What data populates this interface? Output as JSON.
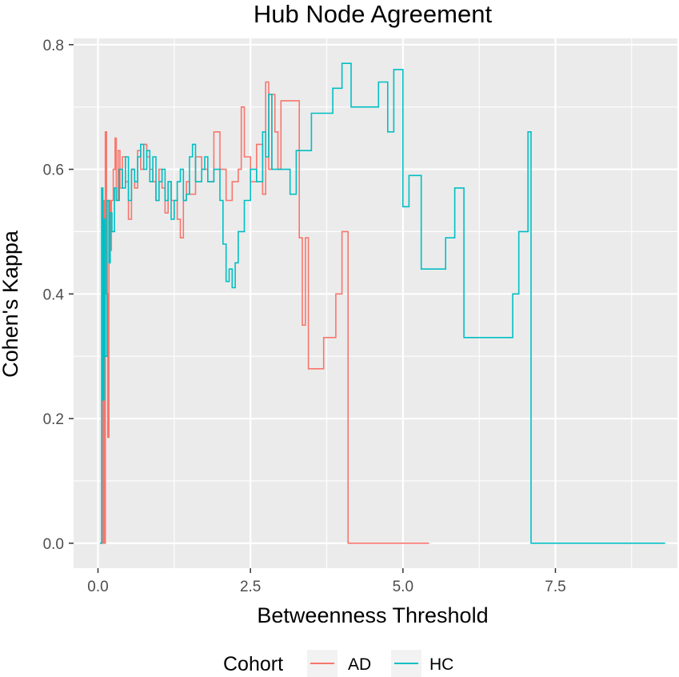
{
  "chart_data": {
    "type": "line",
    "line_style": "step",
    "title": "Hub Node Agreement",
    "xlabel": "Betweenness Threshold",
    "ylabel": "Cohen's Kappa",
    "xlim": [
      -0.4,
      9.5
    ],
    "ylim": [
      -0.04,
      0.81
    ],
    "x_ticks": [
      0,
      2.5,
      5,
      7.5
    ],
    "x_tick_labels": [
      "0.0",
      "2.5",
      "5.0",
      "7.5"
    ],
    "y_ticks": [
      0,
      0.2,
      0.4,
      0.6,
      0.8
    ],
    "y_tick_labels": [
      "0.0",
      "0.2",
      "0.4",
      "0.6",
      "0.8"
    ],
    "grid": true,
    "legend": {
      "title": "Cohort",
      "position": "bottom"
    },
    "series": [
      {
        "name": "AD",
        "color": "#F8766D",
        "x": [
          0.05,
          0.08,
          0.1,
          0.12,
          0.14,
          0.16,
          0.18,
          0.2,
          0.22,
          0.25,
          0.28,
          0.3,
          0.33,
          0.36,
          0.4,
          0.45,
          0.5,
          0.55,
          0.6,
          0.65,
          0.7,
          0.75,
          0.8,
          0.85,
          0.9,
          0.95,
          1.0,
          1.05,
          1.1,
          1.15,
          1.2,
          1.3,
          1.35,
          1.4,
          1.45,
          1.5,
          1.6,
          1.7,
          1.8,
          1.9,
          2.0,
          2.1,
          2.2,
          2.3,
          2.35,
          2.4,
          2.5,
          2.6,
          2.7,
          2.75,
          2.8,
          2.85,
          2.9,
          2.95,
          3.0,
          3.3,
          3.35,
          3.4,
          3.45,
          3.55,
          3.7,
          3.9,
          4.0,
          4.1,
          4.3,
          5.43
        ],
        "values": [
          0.0,
          0.55,
          0.0,
          0.66,
          0.4,
          0.17,
          0.55,
          0.47,
          0.55,
          0.6,
          0.65,
          0.55,
          0.63,
          0.57,
          0.62,
          0.58,
          0.52,
          0.6,
          0.57,
          0.63,
          0.6,
          0.64,
          0.62,
          0.6,
          0.58,
          0.55,
          0.6,
          0.57,
          0.53,
          0.58,
          0.55,
          0.52,
          0.49,
          0.55,
          0.58,
          0.56,
          0.62,
          0.6,
          0.58,
          0.66,
          0.6,
          0.55,
          0.58,
          0.6,
          0.7,
          0.62,
          0.58,
          0.64,
          0.56,
          0.74,
          0.6,
          0.72,
          0.66,
          0.6,
          0.71,
          0.49,
          0.35,
          0.49,
          0.28,
          0.28,
          0.33,
          0.4,
          0.5,
          0.0,
          0.0,
          0.0
        ]
      },
      {
        "name": "HC",
        "color": "#00BFC4",
        "x": [
          0.03,
          0.06,
          0.08,
          0.1,
          0.12,
          0.15,
          0.18,
          0.2,
          0.23,
          0.27,
          0.3,
          0.35,
          0.4,
          0.45,
          0.5,
          0.55,
          0.6,
          0.65,
          0.7,
          0.75,
          0.8,
          0.85,
          0.9,
          0.95,
          1.0,
          1.05,
          1.1,
          1.15,
          1.2,
          1.25,
          1.3,
          1.35,
          1.4,
          1.45,
          1.5,
          1.55,
          1.6,
          1.7,
          1.75,
          1.8,
          1.9,
          2.0,
          2.05,
          2.1,
          2.15,
          2.2,
          2.25,
          2.3,
          2.4,
          2.5,
          2.6,
          2.7,
          2.75,
          2.8,
          2.85,
          3.0,
          3.15,
          3.25,
          3.5,
          3.7,
          3.85,
          4.0,
          4.15,
          4.55,
          4.6,
          4.75,
          4.8,
          4.85,
          5.0,
          5.1,
          5.3,
          5.7,
          5.85,
          6.0,
          6.8,
          6.85,
          6.9,
          7.05,
          7.1,
          9.3
        ],
        "values": [
          0.0,
          0.57,
          0.23,
          0.52,
          0.3,
          0.55,
          0.45,
          0.53,
          0.5,
          0.57,
          0.55,
          0.6,
          0.57,
          0.62,
          0.55,
          0.6,
          0.58,
          0.62,
          0.64,
          0.6,
          0.63,
          0.58,
          0.62,
          0.55,
          0.58,
          0.6,
          0.55,
          0.58,
          0.52,
          0.55,
          0.58,
          0.6,
          0.55,
          0.56,
          0.62,
          0.64,
          0.58,
          0.6,
          0.62,
          0.58,
          0.6,
          0.55,
          0.48,
          0.42,
          0.44,
          0.41,
          0.45,
          0.5,
          0.55,
          0.6,
          0.58,
          0.66,
          0.62,
          0.72,
          0.6,
          0.6,
          0.56,
          0.63,
          0.69,
          0.69,
          0.73,
          0.77,
          0.7,
          0.7,
          0.74,
          0.66,
          0.66,
          0.76,
          0.54,
          0.59,
          0.44,
          0.49,
          0.57,
          0.33,
          0.4,
          0.4,
          0.5,
          0.66,
          0.0,
          0.0
        ]
      }
    ]
  }
}
